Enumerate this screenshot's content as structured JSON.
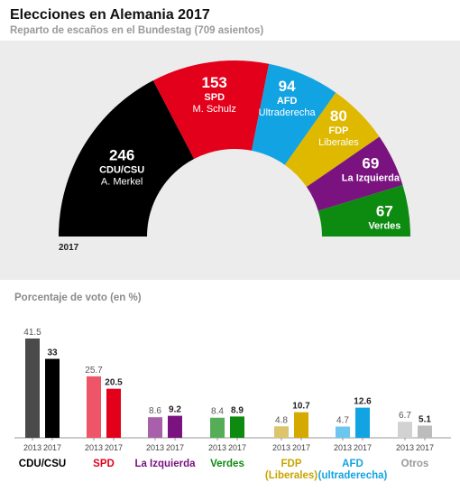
{
  "header": {
    "title": "Elecciones en Alemania 2017",
    "subtitle": "Reparto de escaños en el Bundestag (709 asientos)"
  },
  "chart_data": [
    {
      "type": "pie",
      "subtype": "semicircle",
      "year_label": "2017",
      "total": 709,
      "series": [
        {
          "name": "CDU/CSU",
          "value": 246,
          "detail": "A. Merkel",
          "color": "#000000"
        },
        {
          "name": "SPD",
          "value": 153,
          "detail": "M. Schulz",
          "color": "#e3001b"
        },
        {
          "name": "AFD",
          "value": 94,
          "detail": "Ultraderecha",
          "color": "#12a3e3"
        },
        {
          "name": "FDP",
          "value": 80,
          "detail": "Liberales",
          "color": "#dfb800"
        },
        {
          "name": "La Izquierda",
          "value": 69,
          "detail": "",
          "color": "#7a1380"
        },
        {
          "name": "Verdes",
          "value": 67,
          "detail": "",
          "color": "#0d8a10"
        }
      ]
    },
    {
      "type": "bar",
      "title": "Porcentaje de voto (en %)",
      "sublabels": [
        "2013",
        "2017"
      ],
      "groups": [
        {
          "name": "CDU/CSU",
          "values": [
            41.5,
            33
          ],
          "labels": [
            "41.5",
            "33"
          ],
          "color": "#000000",
          "color_2013": "#4a4a4a",
          "label_color": "#000000"
        },
        {
          "name": "SPD",
          "values": [
            25.7,
            20.5
          ],
          "labels": [
            "25.7",
            "20.5"
          ],
          "color": "#e3001b",
          "color_2013": "#ee5568",
          "label_color": "#e3001b"
        },
        {
          "name": "La Izquierda",
          "values": [
            8.6,
            9.2
          ],
          "labels": [
            "8.6",
            "9.2"
          ],
          "color": "#7a1380",
          "color_2013": "#a860ab",
          "label_color": "#7a1380"
        },
        {
          "name": "Verdes",
          "values": [
            8.4,
            8.9
          ],
          "labels": [
            "8.4",
            "8.9"
          ],
          "color": "#0d8a10",
          "color_2013": "#55ad57",
          "label_color": "#0d8a10"
        },
        {
          "name": "FDP\n(Liberales)",
          "values": [
            4.8,
            10.7
          ],
          "labels": [
            "4.8",
            "10.7"
          ],
          "color": "#d4aa00",
          "color_2013": "#dcc56c",
          "label_color": "#c9a300"
        },
        {
          "name": "AFD\n(ultraderecha)",
          "values": [
            4.7,
            12.6
          ],
          "labels": [
            "4.7",
            "12.6"
          ],
          "color": "#12a3e3",
          "color_2013": "#6cc6ee",
          "label_color": "#12a3e3"
        },
        {
          "name": "Otros",
          "values": [
            6.7,
            5.1
          ],
          "labels": [
            "6.7",
            "5.1"
          ],
          "color": "#bcbcbc",
          "color_2013": "#d2d2d2",
          "label_color": "#9a9a9a"
        }
      ]
    }
  ]
}
